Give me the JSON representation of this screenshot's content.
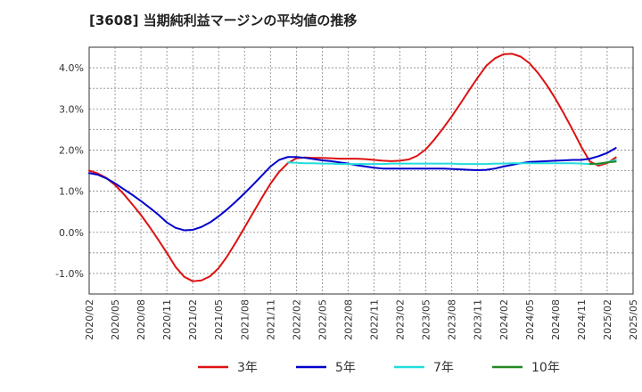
{
  "chart_data": {
    "type": "line",
    "title": "[3608]  当期純利益マージンの平均値の推移",
    "xlabel": "",
    "ylabel": "",
    "y_unit": "%",
    "ylim": [
      -1.5,
      4.5
    ],
    "y_ticks": [
      -1.0,
      0.0,
      1.0,
      2.0,
      3.0,
      4.0
    ],
    "y_tick_labels": [
      "-1.0%",
      "0.0%",
      "1.0%",
      "2.0%",
      "3.0%",
      "4.0%"
    ],
    "x_ticks": [
      "2020/02",
      "2020/05",
      "2020/08",
      "2020/11",
      "2021/02",
      "2021/05",
      "2021/08",
      "2021/11",
      "2022/02",
      "2022/05",
      "2022/08",
      "2022/11",
      "2023/02",
      "2023/05",
      "2023/08",
      "2023/11",
      "2024/02",
      "2024/05",
      "2024/08",
      "2024/11",
      "2025/02",
      "2025/05"
    ],
    "grid": true,
    "legend_position": "bottom",
    "series": [
      {
        "name": "3年",
        "color": "#dd1111",
        "points": [
          [
            "2020/02",
            1.5
          ],
          [
            "2020/03",
            1.43
          ],
          [
            "2020/04",
            1.32
          ],
          [
            "2020/05",
            1.15
          ],
          [
            "2020/06",
            0.93
          ],
          [
            "2020/07",
            0.68
          ],
          [
            "2020/08",
            0.42
          ],
          [
            "2020/09",
            0.13
          ],
          [
            "2020/10",
            -0.18
          ],
          [
            "2020/11",
            -0.5
          ],
          [
            "2020/12",
            -0.84
          ],
          [
            "2021/01",
            -1.08
          ],
          [
            "2021/02",
            -1.19
          ],
          [
            "2021/03",
            -1.17
          ],
          [
            "2021/04",
            -1.07
          ],
          [
            "2021/05",
            -0.87
          ],
          [
            "2021/06",
            -0.58
          ],
          [
            "2021/07",
            -0.24
          ],
          [
            "2021/08",
            0.12
          ],
          [
            "2021/09",
            0.48
          ],
          [
            "2021/10",
            0.84
          ],
          [
            "2021/11",
            1.18
          ],
          [
            "2021/12",
            1.47
          ],
          [
            "2022/01",
            1.68
          ],
          [
            "2022/02",
            1.8
          ],
          [
            "2022/03",
            1.82
          ],
          [
            "2022/04",
            1.81
          ],
          [
            "2022/05",
            1.81
          ],
          [
            "2022/06",
            1.8
          ],
          [
            "2022/07",
            1.79
          ],
          [
            "2022/08",
            1.79
          ],
          [
            "2022/09",
            1.79
          ],
          [
            "2022/10",
            1.78
          ],
          [
            "2022/11",
            1.76
          ],
          [
            "2022/12",
            1.74
          ],
          [
            "2023/01",
            1.73
          ],
          [
            "2023/02",
            1.74
          ],
          [
            "2023/03",
            1.77
          ],
          [
            "2023/04",
            1.86
          ],
          [
            "2023/05",
            2.02
          ],
          [
            "2023/06",
            2.26
          ],
          [
            "2023/07",
            2.53
          ],
          [
            "2023/08",
            2.82
          ],
          [
            "2023/09",
            3.13
          ],
          [
            "2023/10",
            3.45
          ],
          [
            "2023/11",
            3.76
          ],
          [
            "2023/12",
            4.05
          ],
          [
            "2024/01",
            4.23
          ],
          [
            "2024/02",
            4.33
          ],
          [
            "2024/03",
            4.34
          ],
          [
            "2024/04",
            4.27
          ],
          [
            "2024/05",
            4.11
          ],
          [
            "2024/06",
            3.87
          ],
          [
            "2024/07",
            3.58
          ],
          [
            "2024/08",
            3.25
          ],
          [
            "2024/09",
            2.88
          ],
          [
            "2024/10",
            2.49
          ],
          [
            "2024/11",
            2.08
          ],
          [
            "2024/12",
            1.72
          ],
          [
            "2025/01",
            1.62
          ],
          [
            "2025/02",
            1.68
          ],
          [
            "2025/03",
            1.82
          ]
        ]
      },
      {
        "name": "5年",
        "color": "#0000cc",
        "points": [
          [
            "2020/02",
            1.44
          ],
          [
            "2020/03",
            1.4
          ],
          [
            "2020/04",
            1.31
          ],
          [
            "2020/05",
            1.19
          ],
          [
            "2020/06",
            1.05
          ],
          [
            "2020/07",
            0.91
          ],
          [
            "2020/08",
            0.76
          ],
          [
            "2020/09",
            0.6
          ],
          [
            "2020/10",
            0.43
          ],
          [
            "2020/11",
            0.24
          ],
          [
            "2020/12",
            0.11
          ],
          [
            "2021/01",
            0.05
          ],
          [
            "2021/02",
            0.06
          ],
          [
            "2021/03",
            0.13
          ],
          [
            "2021/04",
            0.24
          ],
          [
            "2021/05",
            0.39
          ],
          [
            "2021/06",
            0.56
          ],
          [
            "2021/07",
            0.75
          ],
          [
            "2021/08",
            0.95
          ],
          [
            "2021/09",
            1.16
          ],
          [
            "2021/10",
            1.38
          ],
          [
            "2021/11",
            1.6
          ],
          [
            "2021/12",
            1.76
          ],
          [
            "2022/01",
            1.83
          ],
          [
            "2022/02",
            1.83
          ],
          [
            "2022/03",
            1.81
          ],
          [
            "2022/04",
            1.78
          ],
          [
            "2022/05",
            1.75
          ],
          [
            "2022/06",
            1.73
          ],
          [
            "2022/07",
            1.7
          ],
          [
            "2022/08",
            1.67
          ],
          [
            "2022/09",
            1.63
          ],
          [
            "2022/10",
            1.6
          ],
          [
            "2022/11",
            1.57
          ],
          [
            "2022/12",
            1.55
          ],
          [
            "2023/01",
            1.55
          ],
          [
            "2023/02",
            1.55
          ],
          [
            "2023/03",
            1.55
          ],
          [
            "2023/04",
            1.55
          ],
          [
            "2023/05",
            1.55
          ],
          [
            "2023/06",
            1.55
          ],
          [
            "2023/07",
            1.55
          ],
          [
            "2023/08",
            1.54
          ],
          [
            "2023/09",
            1.53
          ],
          [
            "2023/10",
            1.52
          ],
          [
            "2023/11",
            1.51
          ],
          [
            "2023/12",
            1.52
          ],
          [
            "2024/01",
            1.55
          ],
          [
            "2024/02",
            1.6
          ],
          [
            "2024/03",
            1.64
          ],
          [
            "2024/04",
            1.68
          ],
          [
            "2024/05",
            1.71
          ],
          [
            "2024/06",
            1.72
          ],
          [
            "2024/07",
            1.73
          ],
          [
            "2024/08",
            1.74
          ],
          [
            "2024/09",
            1.75
          ],
          [
            "2024/10",
            1.76
          ],
          [
            "2024/11",
            1.76
          ],
          [
            "2024/12",
            1.79
          ],
          [
            "2025/01",
            1.85
          ],
          [
            "2025/02",
            1.93
          ],
          [
            "2025/03",
            2.05
          ]
        ]
      },
      {
        "name": "7年",
        "color": "#22dddd",
        "points": [
          [
            "2022/01",
            1.7
          ],
          [
            "2022/02",
            1.69
          ],
          [
            "2022/03",
            1.68
          ],
          [
            "2022/04",
            1.68
          ],
          [
            "2022/05",
            1.67
          ],
          [
            "2022/06",
            1.67
          ],
          [
            "2022/07",
            1.66
          ],
          [
            "2022/08",
            1.66
          ],
          [
            "2022/09",
            1.66
          ],
          [
            "2022/10",
            1.66
          ],
          [
            "2022/11",
            1.66
          ],
          [
            "2022/12",
            1.66
          ],
          [
            "2023/01",
            1.67
          ],
          [
            "2023/02",
            1.67
          ],
          [
            "2023/03",
            1.67
          ],
          [
            "2023/04",
            1.67
          ],
          [
            "2023/05",
            1.67
          ],
          [
            "2023/06",
            1.67
          ],
          [
            "2023/07",
            1.67
          ],
          [
            "2023/08",
            1.67
          ],
          [
            "2023/09",
            1.66
          ],
          [
            "2023/10",
            1.66
          ],
          [
            "2023/11",
            1.66
          ],
          [
            "2023/12",
            1.66
          ],
          [
            "2024/01",
            1.67
          ],
          [
            "2024/02",
            1.67
          ],
          [
            "2024/03",
            1.68
          ],
          [
            "2024/04",
            1.68
          ],
          [
            "2024/05",
            1.68
          ],
          [
            "2024/06",
            1.68
          ],
          [
            "2024/07",
            1.68
          ],
          [
            "2024/08",
            1.68
          ],
          [
            "2024/09",
            1.68
          ],
          [
            "2024/10",
            1.68
          ],
          [
            "2024/11",
            1.67
          ],
          [
            "2024/12",
            1.66
          ],
          [
            "2025/01",
            1.66
          ],
          [
            "2025/02",
            1.7
          ],
          [
            "2025/03",
            1.76
          ]
        ]
      },
      {
        "name": "10年",
        "color": "#228822",
        "points": [
          [
            "2024/12",
            1.66
          ],
          [
            "2025/01",
            1.67
          ],
          [
            "2025/02",
            1.7
          ],
          [
            "2025/03",
            1.72
          ]
        ]
      }
    ]
  }
}
